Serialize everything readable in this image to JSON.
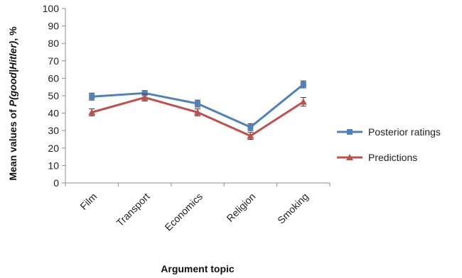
{
  "chart_data": {
    "type": "line",
    "title": "",
    "xlabel": "Argument topic",
    "ylabel": {
      "prefix": "Mean values of ",
      "italic": "P(good|Hitler)",
      "suffix": ", %"
    },
    "categories": [
      "Film",
      "Transport",
      "Economics",
      "Religion",
      "Smoking"
    ],
    "ylim": [
      0,
      100
    ],
    "yticks": [
      0,
      10,
      20,
      30,
      40,
      50,
      60,
      70,
      80,
      90,
      100
    ],
    "grid": false,
    "legend_position": "right",
    "series": [
      {
        "name": "Posterior ratings",
        "color": "#4f81bd",
        "marker": "square",
        "values": [
          49.5,
          51.5,
          45.5,
          32,
          56.5
        ],
        "errors": [
          2,
          1.5,
          2,
          2,
          2
        ]
      },
      {
        "name": "Predictions",
        "color": "#c0504d",
        "marker": "triangle",
        "values": [
          40.5,
          49,
          40.5,
          27,
          46.5
        ],
        "errors": [
          2,
          2,
          2,
          2,
          2.5
        ]
      }
    ]
  }
}
